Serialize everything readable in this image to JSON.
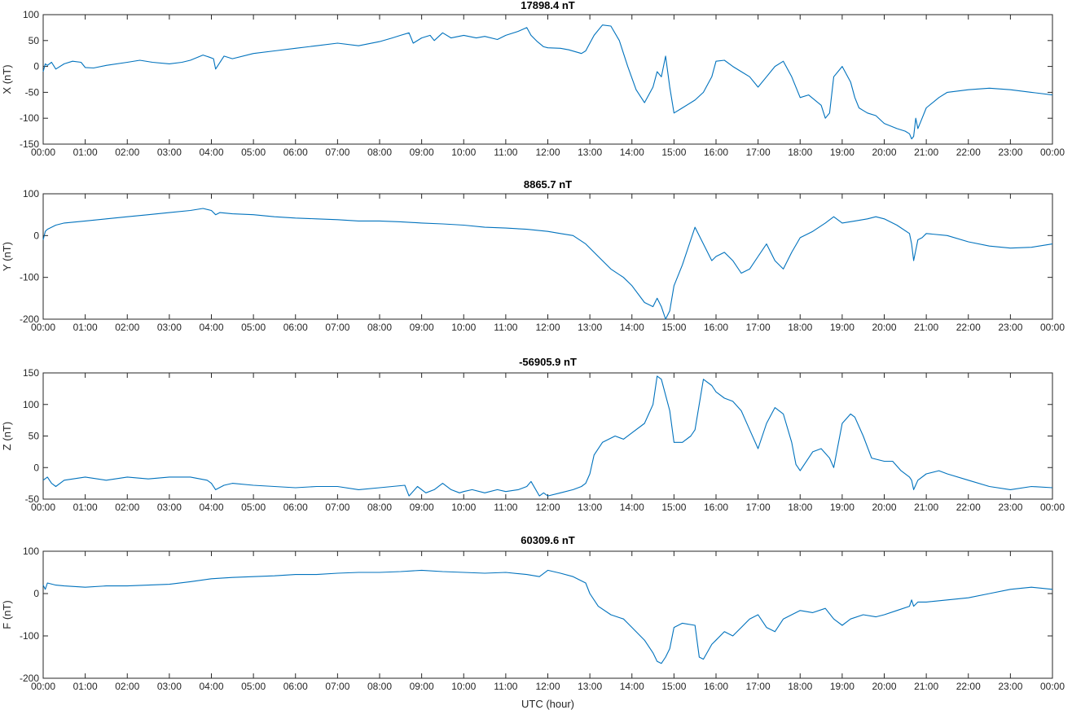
{
  "line_color": "#0072BD",
  "xlabel": "UTC (hour)",
  "chart_data": [
    {
      "type": "line",
      "title": "17898.4 nT",
      "ylabel": "X (nT)",
      "xlim": [
        0,
        24
      ],
      "ylim": [
        -150,
        100
      ],
      "yticks": [
        -150,
        -100,
        -50,
        0,
        50,
        100
      ],
      "xticks": [
        "00:00",
        "01:00",
        "02:00",
        "03:00",
        "04:00",
        "05:00",
        "06:00",
        "07:00",
        "08:00",
        "09:00",
        "10:00",
        "11:00",
        "12:00",
        "13:00",
        "14:00",
        "15:00",
        "16:00",
        "17:00",
        "18:00",
        "19:00",
        "20:00",
        "21:00",
        "22:00",
        "23:00",
        "00:00"
      ],
      "x": [
        0,
        0.05,
        0.1,
        0.2,
        0.3,
        0.5,
        0.7,
        0.9,
        1.0,
        1.2,
        1.5,
        2.0,
        2.3,
        2.6,
        3.0,
        3.3,
        3.5,
        3.8,
        3.95,
        4.05,
        4.1,
        4.3,
        4.5,
        5.0,
        5.5,
        6.0,
        6.5,
        7.0,
        7.5,
        8.0,
        8.3,
        8.5,
        8.7,
        8.8,
        9.0,
        9.2,
        9.3,
        9.5,
        9.7,
        10.0,
        10.3,
        10.5,
        10.8,
        11.0,
        11.3,
        11.5,
        11.6,
        11.75,
        11.9,
        12.0,
        12.3,
        12.5,
        12.8,
        12.9,
        13.0,
        13.1,
        13.3,
        13.5,
        13.7,
        13.9,
        14.1,
        14.3,
        14.5,
        14.6,
        14.7,
        14.8,
        14.9,
        15.0,
        15.2,
        15.5,
        15.7,
        15.9,
        16.0,
        16.2,
        16.4,
        16.6,
        16.8,
        17.0,
        17.2,
        17.4,
        17.6,
        17.8,
        18.0,
        18.2,
        18.5,
        18.6,
        18.7,
        18.8,
        18.9,
        19.0,
        19.2,
        19.3,
        19.4,
        19.5,
        19.6,
        19.8,
        20.0,
        20.3,
        20.5,
        20.6,
        20.65,
        20.7,
        20.75,
        20.8,
        20.9,
        21.0,
        21.3,
        21.5,
        22.0,
        22.5,
        23.0,
        23.5,
        24.0
      ],
      "y": [
        -10,
        5,
        2,
        8,
        -5,
        5,
        10,
        8,
        -2,
        -3,
        2,
        8,
        12,
        8,
        5,
        8,
        12,
        22,
        18,
        15,
        -5,
        20,
        15,
        25,
        30,
        35,
        40,
        45,
        40,
        48,
        55,
        60,
        65,
        45,
        55,
        60,
        50,
        65,
        55,
        60,
        55,
        58,
        52,
        60,
        68,
        75,
        60,
        48,
        38,
        36,
        35,
        32,
        25,
        30,
        45,
        60,
        80,
        78,
        50,
        0,
        -45,
        -70,
        -40,
        -10,
        -20,
        20,
        -40,
        -90,
        -80,
        -65,
        -50,
        -20,
        10,
        12,
        0,
        -10,
        -20,
        -40,
        -20,
        0,
        10,
        -20,
        -60,
        -55,
        -75,
        -100,
        -90,
        -20,
        -10,
        0,
        -30,
        -60,
        -80,
        -85,
        -90,
        -95,
        -110,
        -120,
        -125,
        -130,
        -140,
        -135,
        -100,
        -120,
        -100,
        -80,
        -60,
        -50,
        -45,
        -42,
        -45,
        -50,
        -55
      ]
    },
    {
      "type": "line",
      "title": "8865.7 nT",
      "ylabel": "Y (nT)",
      "xlim": [
        0,
        24
      ],
      "ylim": [
        -200,
        100
      ],
      "yticks": [
        -200,
        -100,
        0,
        100
      ],
      "xticks": [
        "00:00",
        "01:00",
        "02:00",
        "03:00",
        "04:00",
        "05:00",
        "06:00",
        "07:00",
        "08:00",
        "09:00",
        "10:00",
        "11:00",
        "12:00",
        "13:00",
        "14:00",
        "15:00",
        "16:00",
        "17:00",
        "18:00",
        "19:00",
        "20:00",
        "21:00",
        "22:00",
        "23:00",
        "00:00"
      ],
      "x": [
        0,
        0.05,
        0.1,
        0.3,
        0.5,
        1.0,
        1.5,
        2.0,
        2.5,
        3.0,
        3.5,
        3.8,
        4.0,
        4.1,
        4.2,
        4.5,
        5.0,
        5.5,
        6.0,
        6.5,
        7.0,
        7.5,
        8.0,
        8.5,
        9.0,
        9.5,
        10.0,
        10.5,
        11.0,
        11.5,
        12.0,
        12.3,
        12.6,
        12.9,
        13.2,
        13.5,
        13.8,
        14.0,
        14.3,
        14.5,
        14.6,
        14.7,
        14.8,
        14.9,
        15.0,
        15.2,
        15.4,
        15.5,
        15.7,
        15.9,
        16.0,
        16.2,
        16.4,
        16.6,
        16.8,
        17.0,
        17.2,
        17.4,
        17.6,
        17.8,
        18.0,
        18.3,
        18.6,
        18.8,
        19.0,
        19.3,
        19.6,
        19.8,
        20.0,
        20.3,
        20.6,
        20.65,
        20.7,
        20.8,
        20.9,
        21.0,
        21.5,
        22.0,
        22.5,
        23.0,
        23.5,
        24.0
      ],
      "y": [
        -10,
        10,
        15,
        25,
        30,
        35,
        40,
        45,
        50,
        55,
        60,
        65,
        60,
        50,
        55,
        52,
        50,
        45,
        42,
        40,
        38,
        35,
        35,
        33,
        30,
        28,
        25,
        20,
        18,
        15,
        10,
        5,
        0,
        -20,
        -50,
        -80,
        -100,
        -120,
        -160,
        -170,
        -150,
        -170,
        -200,
        -180,
        -120,
        -70,
        -10,
        20,
        -20,
        -60,
        -50,
        -40,
        -60,
        -90,
        -80,
        -50,
        -20,
        -60,
        -80,
        -40,
        -5,
        10,
        30,
        45,
        30,
        35,
        40,
        45,
        40,
        25,
        5,
        -20,
        -60,
        -10,
        -5,
        5,
        0,
        -15,
        -25,
        -30,
        -28,
        -20
      ]
    },
    {
      "type": "line",
      "title": "-56905.9 nT",
      "ylabel": "Z (nT)",
      "xlim": [
        0,
        24
      ],
      "ylim": [
        -50,
        150
      ],
      "yticks": [
        -50,
        0,
        50,
        100,
        150
      ],
      "xticks": [
        "00:00",
        "01:00",
        "02:00",
        "03:00",
        "04:00",
        "05:00",
        "06:00",
        "07:00",
        "08:00",
        "09:00",
        "10:00",
        "11:00",
        "12:00",
        "13:00",
        "14:00",
        "15:00",
        "16:00",
        "17:00",
        "18:00",
        "19:00",
        "20:00",
        "21:00",
        "22:00",
        "23:00",
        "00:00"
      ],
      "x": [
        0,
        0.1,
        0.2,
        0.3,
        0.5,
        1.0,
        1.5,
        2.0,
        2.5,
        3.0,
        3.5,
        3.9,
        4.0,
        4.1,
        4.3,
        4.5,
        5.0,
        5.5,
        6.0,
        6.5,
        7.0,
        7.5,
        8.0,
        8.3,
        8.6,
        8.7,
        8.9,
        9.1,
        9.3,
        9.5,
        9.7,
        9.9,
        10.0,
        10.2,
        10.5,
        10.8,
        11.0,
        11.3,
        11.5,
        11.6,
        11.8,
        11.9,
        12.0,
        12.3,
        12.6,
        12.8,
        12.9,
        13.0,
        13.1,
        13.3,
        13.6,
        13.8,
        14.0,
        14.3,
        14.5,
        14.6,
        14.7,
        14.9,
        15.0,
        15.2,
        15.4,
        15.5,
        15.7,
        15.9,
        16.0,
        16.2,
        16.4,
        16.6,
        16.8,
        17.0,
        17.2,
        17.4,
        17.6,
        17.8,
        17.9,
        18.0,
        18.3,
        18.5,
        18.7,
        18.8,
        19.0,
        19.2,
        19.3,
        19.5,
        19.7,
        20.0,
        20.2,
        20.4,
        20.6,
        20.65,
        20.7,
        20.8,
        21.0,
        21.3,
        21.5,
        22.0,
        22.5,
        23.0,
        23.5,
        24.0
      ],
      "y": [
        -20,
        -15,
        -25,
        -30,
        -20,
        -15,
        -20,
        -15,
        -18,
        -15,
        -15,
        -20,
        -25,
        -35,
        -28,
        -25,
        -28,
        -30,
        -32,
        -30,
        -30,
        -35,
        -32,
        -30,
        -28,
        -45,
        -30,
        -40,
        -35,
        -25,
        -35,
        -40,
        -38,
        -35,
        -40,
        -35,
        -38,
        -35,
        -30,
        -22,
        -45,
        -40,
        -45,
        -40,
        -35,
        -30,
        -25,
        -10,
        20,
        40,
        50,
        45,
        55,
        70,
        100,
        145,
        140,
        90,
        40,
        40,
        50,
        60,
        140,
        130,
        120,
        110,
        105,
        90,
        60,
        30,
        70,
        95,
        85,
        40,
        5,
        -5,
        25,
        30,
        15,
        0,
        70,
        85,
        80,
        50,
        15,
        10,
        10,
        -5,
        -15,
        -20,
        -35,
        -20,
        -10,
        -5,
        -10,
        -20,
        -30,
        -35,
        -30,
        -32
      ]
    },
    {
      "type": "line",
      "title": "60309.6 nT",
      "ylabel": "F (nT)",
      "xlim": [
        0,
        24
      ],
      "ylim": [
        -200,
        100
      ],
      "yticks": [
        -200,
        -100,
        0,
        100
      ],
      "xticks": [
        "00:00",
        "01:00",
        "02:00",
        "03:00",
        "04:00",
        "05:00",
        "06:00",
        "07:00",
        "08:00",
        "09:00",
        "10:00",
        "11:00",
        "12:00",
        "13:00",
        "14:00",
        "15:00",
        "16:00",
        "17:00",
        "18:00",
        "19:00",
        "20:00",
        "21:00",
        "22:00",
        "23:00",
        "00:00"
      ],
      "x": [
        0,
        0.05,
        0.1,
        0.3,
        0.5,
        1.0,
        1.5,
        2.0,
        2.5,
        3.0,
        3.5,
        4.0,
        4.5,
        5.0,
        5.5,
        6.0,
        6.5,
        7.0,
        7.5,
        8.0,
        8.5,
        9.0,
        9.5,
        10.0,
        10.5,
        11.0,
        11.5,
        11.8,
        12.0,
        12.3,
        12.6,
        12.9,
        13.0,
        13.2,
        13.5,
        13.8,
        14.0,
        14.3,
        14.5,
        14.6,
        14.7,
        14.8,
        14.9,
        15.0,
        15.2,
        15.5,
        15.6,
        15.7,
        15.9,
        16.0,
        16.2,
        16.4,
        16.6,
        16.8,
        17.0,
        17.2,
        17.4,
        17.6,
        17.8,
        18.0,
        18.3,
        18.6,
        18.8,
        19.0,
        19.2,
        19.5,
        19.8,
        20.0,
        20.3,
        20.6,
        20.65,
        20.7,
        20.8,
        21.0,
        21.5,
        22.0,
        22.5,
        23.0,
        23.5,
        24.0
      ],
      "y": [
        20,
        10,
        25,
        20,
        18,
        15,
        18,
        18,
        20,
        22,
        28,
        35,
        38,
        40,
        42,
        45,
        45,
        48,
        50,
        50,
        52,
        55,
        52,
        50,
        48,
        50,
        45,
        40,
        55,
        48,
        40,
        25,
        0,
        -30,
        -50,
        -60,
        -80,
        -110,
        -140,
        -160,
        -165,
        -150,
        -130,
        -80,
        -70,
        -75,
        -150,
        -155,
        -120,
        -110,
        -90,
        -100,
        -80,
        -60,
        -50,
        -80,
        -90,
        -60,
        -50,
        -40,
        -45,
        -35,
        -60,
        -75,
        -60,
        -50,
        -55,
        -50,
        -40,
        -30,
        -15,
        -30,
        -20,
        -20,
        -15,
        -10,
        0,
        10,
        15,
        10
      ]
    }
  ]
}
